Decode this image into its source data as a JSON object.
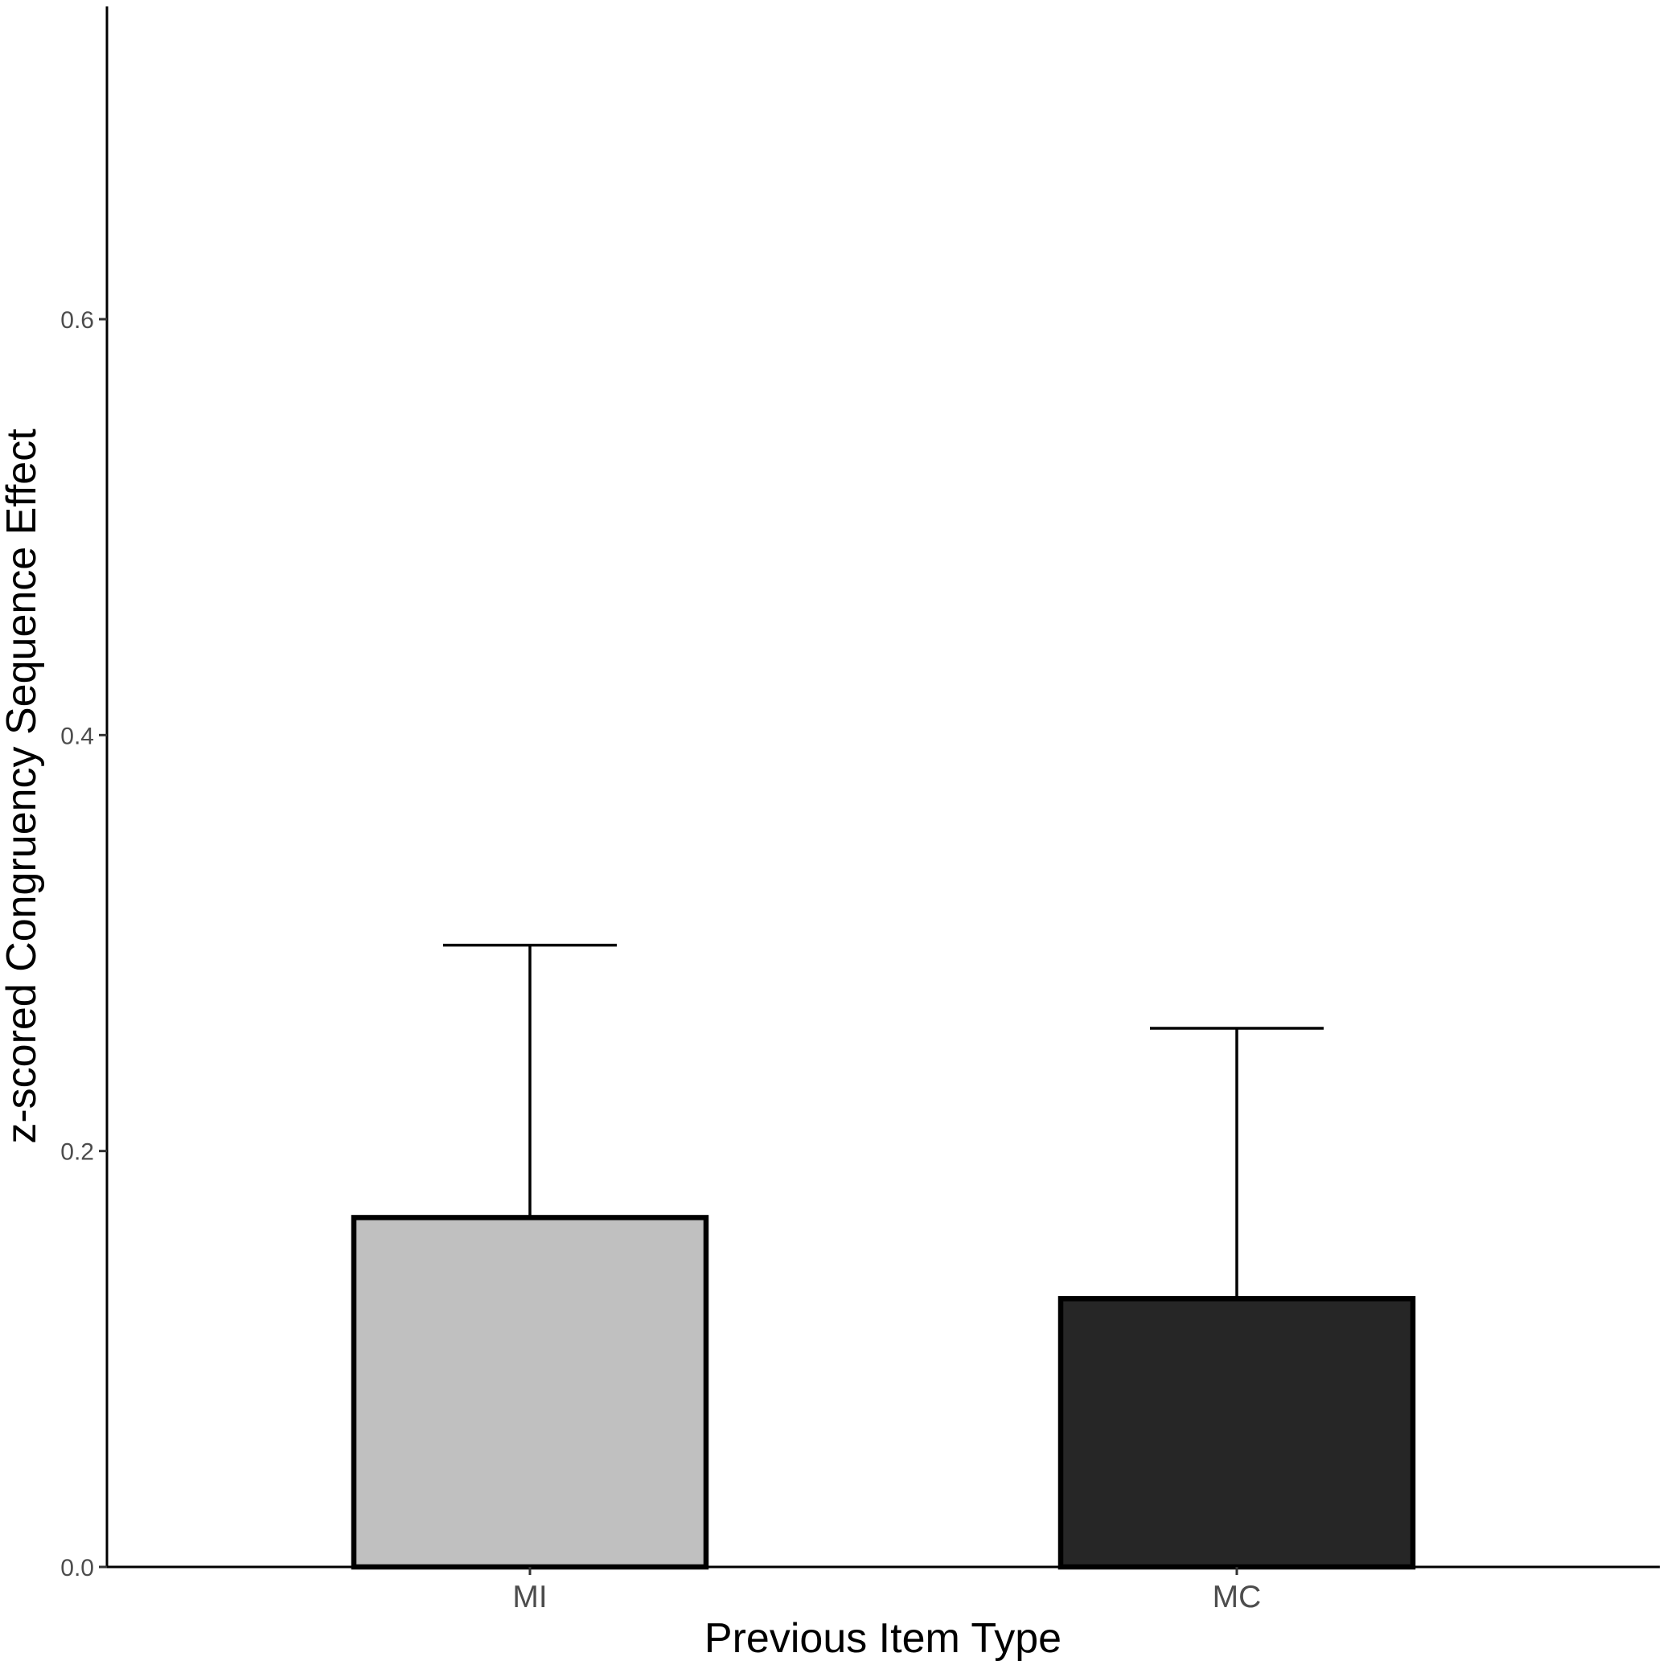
{
  "chart_data": {
    "type": "bar",
    "title": "",
    "xlabel": "Previous Item Type",
    "ylabel": "z-scored Congruency Sequence Effect",
    "categories": [
      "MI",
      "MC"
    ],
    "series": [
      {
        "values": [
          0.168,
          0.129
        ],
        "error_upper": [
          0.299,
          0.259
        ],
        "colors": [
          "#c0c0c0",
          "#262626"
        ]
      }
    ],
    "ylim": [
      0,
      0.75
    ],
    "yticks": [
      0.0,
      0.2,
      0.4,
      0.6
    ],
    "ytick_labels": [
      "0.0",
      "0.2",
      "0.4",
      "0.6"
    ],
    "grid": false,
    "legend": "none"
  }
}
